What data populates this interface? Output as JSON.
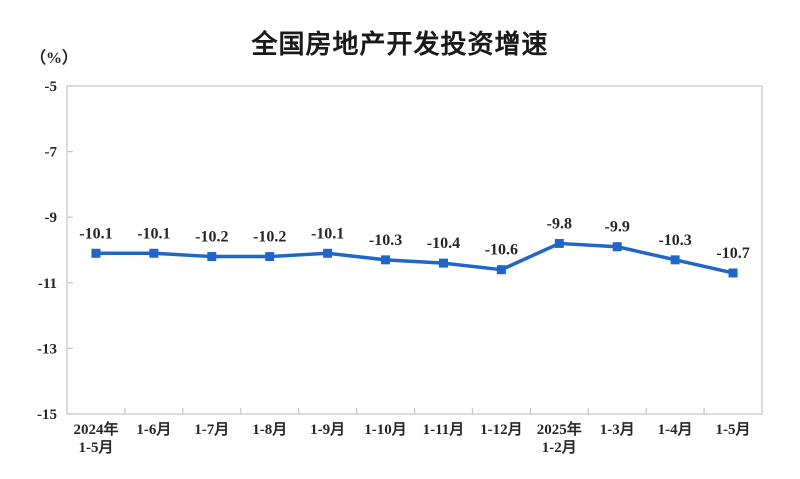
{
  "chart": {
    "title": "全国房地产开发投资增速",
    "y_unit_label": "（%）"
  },
  "chart_data": {
    "type": "line",
    "title": "全国房地产开发投资增速",
    "ylabel": "（%）",
    "xlabel": "",
    "categories": [
      "2024年\n1-5月",
      "1-6月",
      "1-7月",
      "1-8月",
      "1-9月",
      "1-10月",
      "1-11月",
      "1-12月",
      "2025年\n1-2月",
      "1-3月",
      "1-4月",
      "1-5月"
    ],
    "values": [
      -10.1,
      -10.1,
      -10.2,
      -10.2,
      -10.1,
      -10.3,
      -10.4,
      -10.6,
      -9.8,
      -9.9,
      -10.3,
      -10.7
    ],
    "data_labels": [
      "-10.1",
      "-10.1",
      "-10.2",
      "-10.2",
      "-10.1",
      "-10.3",
      "-10.4",
      "-10.6",
      "-9.8",
      "-9.9",
      "-10.3",
      "-10.7"
    ],
    "ylim": [
      -15,
      -5
    ],
    "yticks": [
      -5,
      -7,
      -9,
      -11,
      -13,
      -15
    ],
    "grid": false,
    "legend": "none",
    "line_color": "#2065C8",
    "axis_color": "#C9C9C9",
    "text_color": "#262626"
  }
}
